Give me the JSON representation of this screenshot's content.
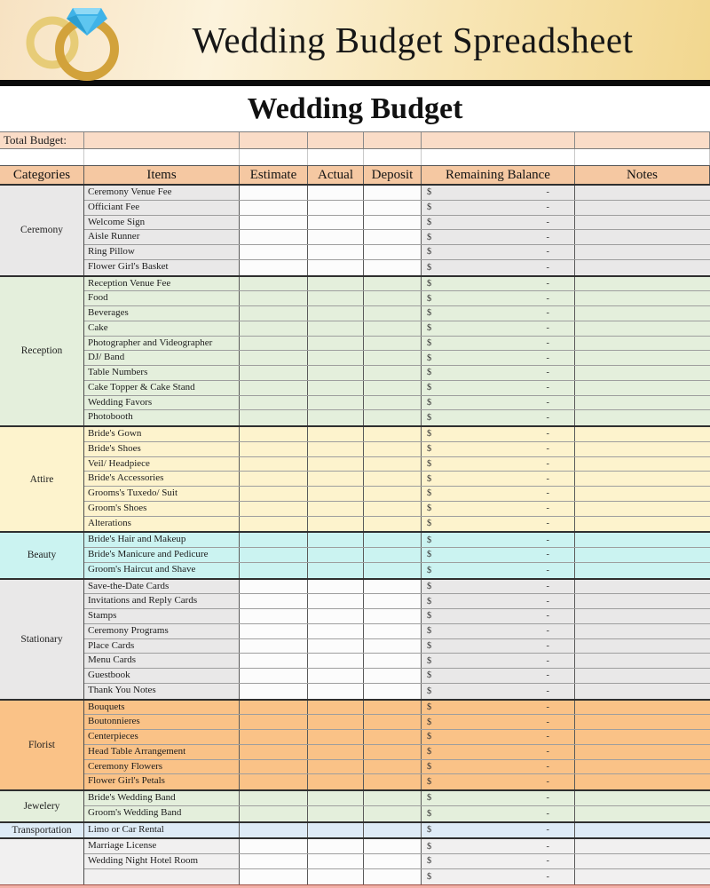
{
  "banner": {
    "title": "Wedding Budget Spreadsheet",
    "icon": "wedding-rings-icon",
    "colors": {
      "gradient_left": "#F7E2C2",
      "gradient_mid": "#FCF3DC",
      "gradient_right": "#F2D78F",
      "ring_light": "#E7CC77",
      "ring_dark": "#D2A23B",
      "diamond_blue": "#3FB3E8"
    }
  },
  "sheet_title": "Wedding Budget",
  "total_budget_label": "Total Budget:",
  "columns": [
    "Categories",
    "Items",
    "Estimate",
    "Actual",
    "Deposit",
    "Remaining Balance",
    "Notes"
  ],
  "currency_symbol": "$",
  "remaining_placeholder": "-",
  "colors": {
    "total_row_bg": "#FADCC7",
    "header_bg": "#F5C8A2",
    "mid_cell_white": "#FCFCFC",
    "black_bar": "#0B0B0B",
    "bottom_strip": "#F2B0A7"
  },
  "sections": [
    {
      "category": "Ceremony",
      "color": "#E9E8E8",
      "mid_white": true,
      "items": [
        "Ceremony Venue Fee",
        "Officiant Fee",
        "Welcome Sign",
        "Aisle Runner",
        "Ring Pillow",
        "Flower Girl's Basket"
      ]
    },
    {
      "category": "Reception",
      "color": "#E4EFDC",
      "mid_white": false,
      "items": [
        "Reception Venue Fee",
        "Food",
        "Beverages",
        "Cake",
        "Photographer and Videographer",
        "DJ/ Band",
        "Table Numbers",
        "Cake Topper & Cake Stand",
        "Wedding Favors",
        "Photobooth"
      ]
    },
    {
      "category": "Attire",
      "color": "#FDF3CD",
      "mid_white": false,
      "items": [
        "Bride's Gown",
        "Bride's Shoes",
        "Veil/ Headpiece",
        "Bride's Accessories",
        "Grooms's Tuxedo/ Suit",
        "Groom's Shoes",
        "Alterations"
      ]
    },
    {
      "category": "Beauty",
      "color": "#CBF3F1",
      "mid_white": false,
      "items": [
        "Bride's Hair and Makeup",
        "Bride's Manicure and Pedicure",
        "Groom's Haircut and Shave"
      ]
    },
    {
      "category": "Stationary",
      "color": "#E9E8E8",
      "mid_white": true,
      "items": [
        "Save-the-Date Cards",
        "Invitations and Reply Cards",
        "Stamps",
        "Ceremony Programs",
        "Place Cards",
        "Menu Cards",
        "Guestbook",
        "Thank You Notes"
      ]
    },
    {
      "category": "Florist",
      "color": "#FAC287",
      "mid_white": false,
      "items": [
        "Bouquets",
        "Boutonnieres",
        "Centerpieces",
        "Head Table Arrangement",
        "Ceremony Flowers",
        "Flower Girl's Petals"
      ]
    },
    {
      "category": "Jewelery",
      "color": "#E4EFDC",
      "mid_white": false,
      "items": [
        "Bride's Wedding Band",
        "Groom's Wedding Band"
      ]
    },
    {
      "category": "Transportation",
      "color": "#DEEBF6",
      "mid_white": false,
      "items": [
        "Limo or Car Rental"
      ]
    },
    {
      "category": "",
      "color": "#F1F0F0",
      "mid_white": true,
      "items": [
        "Marriage License",
        "Wedding Night Hotel Room",
        ""
      ]
    }
  ]
}
